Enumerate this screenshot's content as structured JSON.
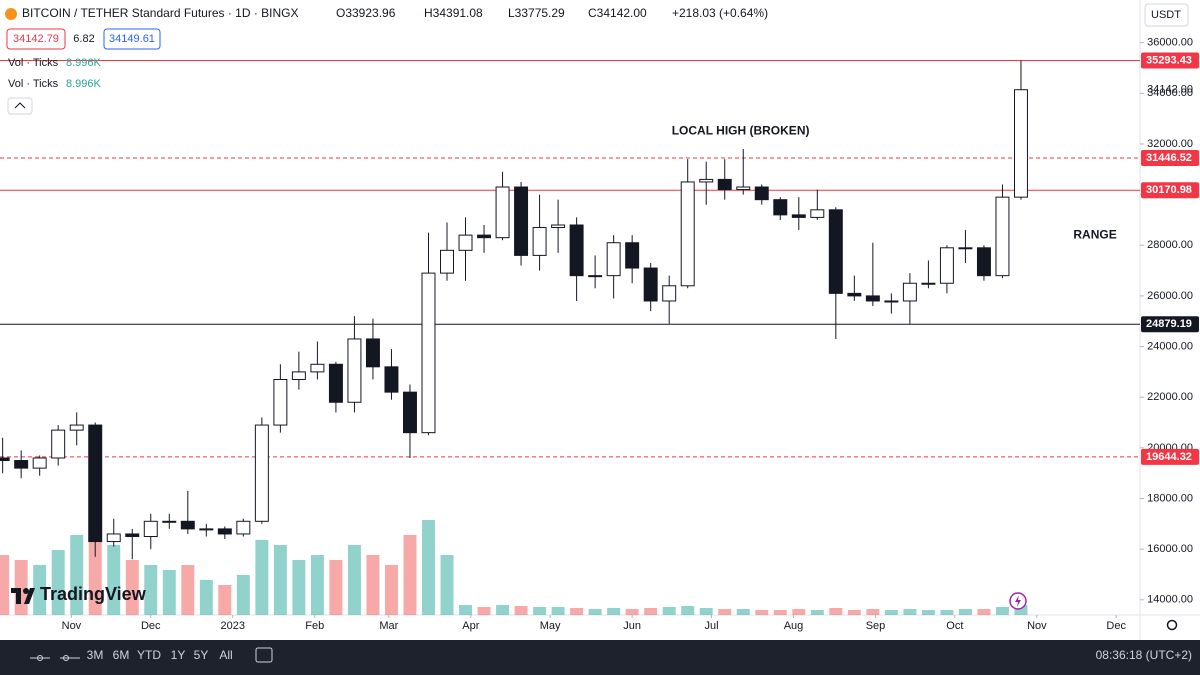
{
  "header": {
    "symbol": "BITCOIN / TETHER Standard Futures · 1D · BINGX",
    "open": "O33923.96",
    "high": "H34391.08",
    "low": "L33775.29",
    "close": "C34142.00",
    "change": "+218.03 (+0.64%)",
    "bid": "34142.79",
    "spread": "6.82",
    "ask": "34149.61",
    "indicator1": "Vol · Ticks",
    "indicator1_value": "8.996K",
    "indicator2": "Vol · Ticks",
    "indicator2_value": "8.996K",
    "currency": "USDT",
    "logo": "TradingView"
  },
  "toolbar": {
    "ranges": [
      "3M",
      "6M",
      "YTD",
      "1Y",
      "5Y",
      "All"
    ],
    "clock": "08:36:18 (UTC+2)"
  },
  "chart_data": {
    "type": "candlestick",
    "x": [
      1,
      8,
      15,
      22,
      29,
      36,
      43,
      50,
      57,
      64,
      71,
      78,
      85,
      92,
      99,
      106,
      113,
      120,
      127,
      134,
      141,
      148,
      155,
      162,
      169,
      176,
      183,
      190,
      197,
      204,
      211,
      218,
      225,
      232,
      239,
      246,
      253,
      260,
      267,
      274,
      281,
      288,
      295,
      302,
      309,
      316,
      323,
      330,
      337,
      344,
      351,
      358,
      365,
      372,
      379,
      386
    ],
    "open": [
      19600,
      19500,
      19200,
      19600,
      20700,
      20900,
      16300,
      16600,
      16500,
      17100,
      17100,
      16800,
      16800,
      16600,
      17100,
      20900,
      22700,
      23000,
      23300,
      21800,
      24300,
      23200,
      22200,
      20600,
      26900,
      27800,
      28400,
      28300,
      30300,
      27600,
      28700,
      28800,
      26800,
      26800,
      28100,
      27100,
      25800,
      26400,
      30500,
      30600,
      30200,
      30300,
      29800,
      29200,
      29100,
      29400,
      26100,
      26000,
      25800,
      25800,
      26500,
      26500,
      27900,
      27900,
      26800,
      29900
    ],
    "high": [
      20400,
      19900,
      19700,
      20900,
      21400,
      21000,
      17200,
      16800,
      17400,
      17400,
      18300,
      17000,
      16900,
      17200,
      21200,
      23300,
      23800,
      24200,
      23400,
      25200,
      25100,
      23900,
      22500,
      28500,
      28900,
      29100,
      28800,
      30900,
      30500,
      30000,
      29800,
      29100,
      27600,
      28400,
      28400,
      27300,
      26800,
      31400,
      31300,
      31400,
      31800,
      30400,
      29900,
      29900,
      30200,
      29500,
      26800,
      28100,
      26100,
      26900,
      27400,
      28000,
      28600,
      28000,
      30400,
      35293.43
    ],
    "low": [
      19000,
      18800,
      18900,
      19300,
      20100,
      15700,
      16100,
      15600,
      16000,
      16800,
      16600,
      16500,
      16400,
      16500,
      17000,
      20600,
      22300,
      22700,
      21400,
      21400,
      22700,
      21900,
      19600,
      20500,
      26600,
      26600,
      27700,
      28200,
      27200,
      27000,
      27700,
      25800,
      26300,
      25900,
      26500,
      25400,
      24900,
      26300,
      29600,
      29800,
      30000,
      29600,
      29000,
      28600,
      29000,
      24300,
      25800,
      25600,
      25300,
      24900,
      26300,
      26100,
      27300,
      26600,
      26700,
      29800
    ],
    "close": [
      19500,
      19200,
      19600,
      20700,
      20900,
      16300,
      16600,
      16500,
      17100,
      17100,
      16800,
      16800,
      16600,
      17100,
      20900,
      22700,
      23000,
      23300,
      21800,
      24300,
      23200,
      22200,
      20600,
      26900,
      27800,
      28400,
      28300,
      30300,
      27600,
      28700,
      28800,
      26800,
      26800,
      28100,
      27100,
      25800,
      26400,
      30500,
      30600,
      30200,
      30300,
      29800,
      29200,
      29100,
      29400,
      26100,
      26000,
      25800,
      25800,
      26500,
      26500,
      27900,
      27900,
      26800,
      29900,
      34142
    ],
    "volume": [
      60,
      55,
      50,
      65,
      80,
      100,
      70,
      55,
      50,
      45,
      50,
      35,
      30,
      40,
      75,
      70,
      55,
      60,
      55,
      70,
      60,
      50,
      80,
      95,
      60,
      10,
      8,
      10,
      9,
      8,
      8,
      7,
      6,
      7,
      6,
      7,
      8,
      9,
      7,
      6,
      6,
      5,
      5,
      6,
      5,
      7,
      5,
      6,
      5,
      6,
      5,
      5,
      6,
      6,
      8,
      10
    ],
    "vlim": [
      0,
      120
    ],
    "up_color": "#ffffff",
    "down_color": "#131722",
    "wick_color": "#131722",
    "volume_up_color": "#26a69a",
    "volume_down_color": "#ef5350",
    "xlim": [
      0,
      431
    ],
    "xticks": [
      {
        "value": 27,
        "label": "Nov"
      },
      {
        "value": 57,
        "label": "Dec"
      },
      {
        "value": 88,
        "label": "2023"
      },
      {
        "value": 119,
        "label": "Feb"
      },
      {
        "value": 147,
        "label": "Mar"
      },
      {
        "value": 178,
        "label": "Apr"
      },
      {
        "value": 208,
        "label": "May"
      },
      {
        "value": 239,
        "label": "Jun"
      },
      {
        "value": 269,
        "label": "Jul"
      },
      {
        "value": 300,
        "label": "Aug"
      },
      {
        "value": 331,
        "label": "Sep"
      },
      {
        "value": 361,
        "label": "Oct"
      },
      {
        "value": 392,
        "label": "Nov"
      },
      {
        "value": 422,
        "label": "Dec"
      }
    ],
    "ylim": [
      13400,
      36500
    ],
    "yticks": [
      {
        "value": 14000,
        "label": "14000.00"
      },
      {
        "value": 16000,
        "label": "16000.00"
      },
      {
        "value": 18000,
        "label": "18000.00"
      },
      {
        "value": 20000,
        "label": "20000.00"
      },
      {
        "value": 22000,
        "label": "22000.00"
      },
      {
        "value": 24000,
        "label": "24000.00"
      },
      {
        "value": 26000,
        "label": "26000.00"
      },
      {
        "value": 28000,
        "label": "28000.00"
      },
      {
        "value": 30000,
        "label": "30000.00"
      },
      {
        "value": 32000,
        "label": "32000.00"
      },
      {
        "value": 34000,
        "label": "34000.00"
      },
      {
        "value": 36000,
        "label": "36000.00"
      }
    ],
    "last_price": {
      "value": 34142,
      "label": "34142.00"
    },
    "levels": [
      {
        "value": 35293.43,
        "color": "#f23645",
        "style": "solid"
      },
      {
        "value": 31446.52,
        "color": "#f23645",
        "style": "dashed"
      },
      {
        "value": 30170.98,
        "color": "#f23645",
        "style": "solid"
      },
      {
        "value": 24879.19,
        "color": "#131722",
        "style": "solid"
      },
      {
        "value": 19644.32,
        "color": "#f23645",
        "style": "dashed"
      }
    ],
    "annotations": [
      {
        "text": "LOCAL HIGH (BROKEN)",
        "x": 280,
        "y": 32500
      },
      {
        "text": "RANGE",
        "x": 414,
        "y": 28400
      }
    ]
  }
}
